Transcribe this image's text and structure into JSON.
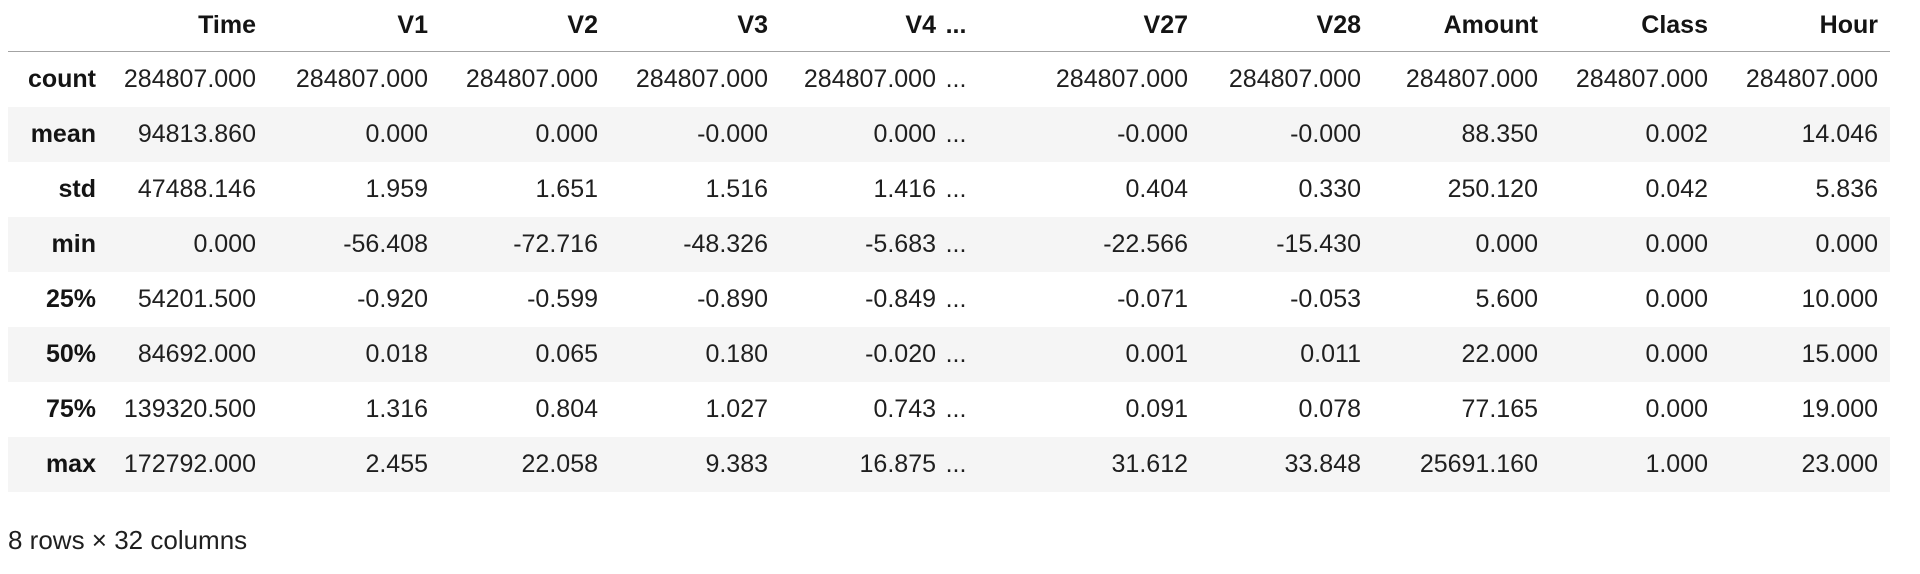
{
  "table": {
    "columns": [
      "",
      "Time",
      "V1",
      "V2",
      "V3",
      "V4",
      "...",
      "V27",
      "V28",
      "Amount",
      "Class",
      "Hour"
    ],
    "rows": [
      {
        "label": "count",
        "values": [
          "284807.000",
          "284807.000",
          "284807.000",
          "284807.000",
          "284807.000",
          "...",
          "284807.000",
          "284807.000",
          "284807.000",
          "284807.000",
          "284807.000"
        ]
      },
      {
        "label": "mean",
        "values": [
          "94813.860",
          "0.000",
          "0.000",
          "-0.000",
          "0.000",
          "...",
          "-0.000",
          "-0.000",
          "88.350",
          "0.002",
          "14.046"
        ]
      },
      {
        "label": "std",
        "values": [
          "47488.146",
          "1.959",
          "1.651",
          "1.516",
          "1.416",
          "...",
          "0.404",
          "0.330",
          "250.120",
          "0.042",
          "5.836"
        ]
      },
      {
        "label": "min",
        "values": [
          "0.000",
          "-56.408",
          "-72.716",
          "-48.326",
          "-5.683",
          "...",
          "-22.566",
          "-15.430",
          "0.000",
          "0.000",
          "0.000"
        ]
      },
      {
        "label": "25%",
        "values": [
          "54201.500",
          "-0.920",
          "-0.599",
          "-0.890",
          "-0.849",
          "...",
          "-0.071",
          "-0.053",
          "5.600",
          "0.000",
          "10.000"
        ]
      },
      {
        "label": "50%",
        "values": [
          "84692.000",
          "0.018",
          "0.065",
          "0.180",
          "-0.020",
          "...",
          "0.001",
          "0.011",
          "22.000",
          "0.000",
          "15.000"
        ]
      },
      {
        "label": "75%",
        "values": [
          "139320.500",
          "1.316",
          "0.804",
          "1.027",
          "0.743",
          "...",
          "0.091",
          "0.078",
          "77.165",
          "0.000",
          "19.000"
        ]
      },
      {
        "label": "max",
        "values": [
          "172792.000",
          "2.455",
          "22.058",
          "9.383",
          "16.875",
          "...",
          "31.612",
          "33.848",
          "25691.160",
          "1.000",
          "23.000"
        ]
      }
    ],
    "footer": "8 rows × 32 columns"
  },
  "colors": {
    "row_stripe": "#f5f5f5",
    "header_border": "#a3a3a3",
    "text": "#1f1f1f",
    "header_text": "#141414",
    "background": "#ffffff"
  }
}
